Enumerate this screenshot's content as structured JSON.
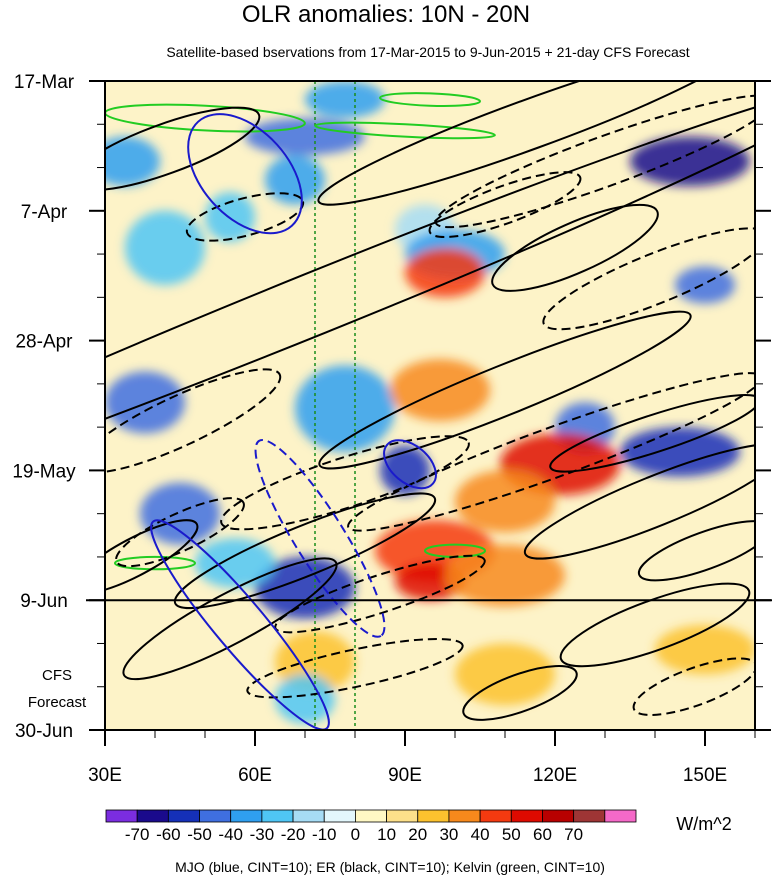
{
  "chart_data": {
    "type": "heatmap",
    "title": "OLR anomalies: 10N - 20N",
    "subtitle": "Satellite-based bservations from 17-Mar-2015 to 9-Jun-2015 + 21-day CFS Forecast",
    "x_axis": {
      "range": [
        30,
        160
      ],
      "ticks": [
        {
          "value": 30,
          "label": "30E"
        },
        {
          "value": 60,
          "label": "60E"
        },
        {
          "value": 90,
          "label": "90E"
        },
        {
          "value": 120,
          "label": "120E"
        },
        {
          "value": 150,
          "label": "150E"
        }
      ]
    },
    "y_axis": {
      "range_days": [
        0,
        105
      ],
      "direction": "top-to-bottom",
      "ticks": [
        {
          "day": 0,
          "label": "17-Mar"
        },
        {
          "day": 21,
          "label": "7-Apr"
        },
        {
          "day": 42,
          "label": "28-Apr"
        },
        {
          "day": 63,
          "label": "19-May"
        },
        {
          "day": 84,
          "label": "9-Jun"
        },
        {
          "day": 105,
          "label": "30-Jun"
        }
      ],
      "forecast_start_day": 84,
      "forecast_label_line1": "CFS",
      "forecast_label_line2": "Forecast"
    },
    "reference_lines_lon": [
      72,
      80
    ],
    "colorbar": {
      "levels": [
        "-70",
        "-60",
        "-50",
        "-40",
        "-30",
        "-20",
        "-10",
        "0",
        "10",
        "20",
        "30",
        "40",
        "50",
        "60",
        "70"
      ],
      "colors": [
        "#7b2de0",
        "#1a0a8c",
        "#1530b8",
        "#3f6fe0",
        "#2f9ff0",
        "#4fc6f5",
        "#a6dcf5",
        "#e3f7fc",
        "#fff8c4",
        "#fde08a",
        "#fcc22e",
        "#f7891c",
        "#f53a10",
        "#de0a00",
        "#b80000",
        "#9e3535",
        "#f569c8"
      ],
      "units": "W/m^2"
    },
    "footnote": "MJO (blue, CINT=10); ER (black, CINT=10); Kelvin (green, CINT=10)",
    "anomaly_features": [
      {
        "lon": 78,
        "day": 3,
        "dlon": 8,
        "dday": 3,
        "value": -35
      },
      {
        "lon": 70,
        "day": 9,
        "dlon": 12,
        "dday": 3,
        "value": -45
      },
      {
        "lon": 34,
        "day": 13,
        "dlon": 7,
        "dday": 4,
        "value": -40
      },
      {
        "lon": 147,
        "day": 13,
        "dlon": 12,
        "dday": 4,
        "value": -70
      },
      {
        "lon": 68,
        "day": 16,
        "dlon": 6,
        "dday": 4,
        "value": -35
      },
      {
        "lon": 55,
        "day": 22,
        "dlon": 5,
        "dday": 4,
        "value": -30
      },
      {
        "lon": 94,
        "day": 24,
        "dlon": 6,
        "dday": 4,
        "value": -20
      },
      {
        "lon": 100,
        "day": 28,
        "dlon": 10,
        "dday": 4,
        "value": -40
      },
      {
        "lon": 42,
        "day": 27,
        "dlon": 8,
        "dday": 6,
        "value": -25
      },
      {
        "lon": 98,
        "day": 31,
        "dlon": 8,
        "dday": 4,
        "value": 40
      },
      {
        "lon": 150,
        "day": 33,
        "dlon": 6,
        "dday": 3,
        "value": -50
      },
      {
        "lon": 38,
        "day": 52,
        "dlon": 8,
        "dday": 5,
        "value": -50
      },
      {
        "lon": 78,
        "day": 53,
        "dlon": 10,
        "dday": 7,
        "value": -40
      },
      {
        "lon": 97,
        "day": 50,
        "dlon": 10,
        "dday": 5,
        "value": 30
      },
      {
        "lon": 90,
        "day": 63,
        "dlon": 5,
        "dday": 4,
        "value": -55
      },
      {
        "lon": 126,
        "day": 56,
        "dlon": 6,
        "dday": 4,
        "value": -45
      },
      {
        "lon": 121,
        "day": 62,
        "dlon": 12,
        "dday": 5,
        "value": 50
      },
      {
        "lon": 145,
        "day": 60,
        "dlon": 12,
        "dday": 4,
        "value": -60
      },
      {
        "lon": 110,
        "day": 68,
        "dlon": 10,
        "dday": 5,
        "value": 30
      },
      {
        "lon": 45,
        "day": 70,
        "dlon": 8,
        "dday": 5,
        "value": -45
      },
      {
        "lon": 96,
        "day": 76,
        "dlon": 12,
        "dday": 5,
        "value": 40
      },
      {
        "lon": 70,
        "day": 82,
        "dlon": 10,
        "dday": 5,
        "value": -60
      },
      {
        "lon": 95,
        "day": 81,
        "dlon": 7,
        "dday": 3,
        "value": 50
      },
      {
        "lon": 110,
        "day": 80,
        "dlon": 12,
        "dday": 5,
        "value": 30
      },
      {
        "lon": 56,
        "day": 78,
        "dlon": 8,
        "dday": 4,
        "value": -30
      },
      {
        "lon": 72,
        "day": 94,
        "dlon": 8,
        "dday": 5,
        "value": 25
      },
      {
        "lon": 70,
        "day": 100,
        "dlon": 6,
        "dday": 4,
        "value": -30
      },
      {
        "lon": 110,
        "day": 96,
        "dlon": 10,
        "dday": 5,
        "value": 20
      },
      {
        "lon": 150,
        "day": 92,
        "dlon": 10,
        "dday": 4,
        "value": 20
      }
    ],
    "mjo_contours": [
      {
        "lon": 58,
        "day": 15,
        "rlon": 14,
        "rday": 7,
        "angle_deg": 48,
        "style": "solid"
      },
      {
        "lon": 91,
        "day": 62,
        "rlon": 6,
        "rday": 3,
        "angle_deg": 40,
        "style": "solid"
      },
      {
        "lon": 73,
        "day": 74,
        "rlon": 23,
        "rday": 4,
        "angle_deg": 58,
        "style": "dashed"
      },
      {
        "lon": 57,
        "day": 88,
        "rlon": 27,
        "rday": 4,
        "angle_deg": 50,
        "style": "solid"
      }
    ],
    "er_contours": [
      {
        "lon": 72,
        "day": 36,
        "rlon": 115,
        "rday": 5,
        "angle_deg": -22,
        "style": "solid"
      },
      {
        "lon": 42,
        "day": 11,
        "rlon": 20,
        "rday": 4,
        "angle_deg": -20,
        "style": "solid"
      },
      {
        "lon": 115,
        "day": 7,
        "rlon": 45,
        "rday": 4,
        "angle_deg": -20,
        "style": "solid"
      },
      {
        "lon": 130,
        "day": 13,
        "rlon": 36,
        "rday": 4,
        "angle_deg": -20,
        "style": "dashed"
      },
      {
        "lon": 110,
        "day": 20,
        "rlon": 16,
        "rday": 3,
        "angle_deg": -20,
        "style": "dashed"
      },
      {
        "lon": 58,
        "day": 22,
        "rlon": 12,
        "rday": 3,
        "angle_deg": -15,
        "style": "dashed"
      },
      {
        "lon": 140,
        "day": 32,
        "rlon": 24,
        "rday": 4,
        "angle_deg": -22,
        "style": "dashed"
      },
      {
        "lon": 124,
        "day": 27,
        "rlon": 18,
        "rday": 4,
        "angle_deg": -24,
        "style": "solid"
      },
      {
        "lon": 110,
        "day": 50,
        "rlon": 40,
        "rday": 4,
        "angle_deg": -22,
        "style": "solid"
      },
      {
        "lon": 120,
        "day": 60,
        "rlon": 44,
        "rday": 4,
        "angle_deg": -20,
        "style": "dashed"
      },
      {
        "lon": 140,
        "day": 57,
        "rlon": 22,
        "rday": 3,
        "angle_deg": -18,
        "style": "solid"
      },
      {
        "lon": 140,
        "day": 68,
        "rlon": 28,
        "rday": 4,
        "angle_deg": -22,
        "style": "solid"
      },
      {
        "lon": 45,
        "day": 55,
        "rlon": 22,
        "rday": 4,
        "angle_deg": -25,
        "style": "dashed"
      },
      {
        "lon": 45,
        "day": 73,
        "rlon": 14,
        "rday": 3,
        "angle_deg": -25,
        "style": "dashed"
      },
      {
        "lon": 36,
        "day": 77,
        "rlon": 14,
        "rday": 3,
        "angle_deg": -28,
        "style": "solid"
      },
      {
        "lon": 78,
        "day": 65,
        "rlon": 26,
        "rday": 4,
        "angle_deg": -18,
        "style": "dashed"
      },
      {
        "lon": 70,
        "day": 76,
        "rlon": 28,
        "rday": 4,
        "angle_deg": -22,
        "style": "solid"
      },
      {
        "lon": 55,
        "day": 87,
        "rlon": 24,
        "rday": 4,
        "angle_deg": -28,
        "style": "solid"
      },
      {
        "lon": 85,
        "day": 83,
        "rlon": 22,
        "rday": 3,
        "angle_deg": -18,
        "style": "dashed"
      },
      {
        "lon": 140,
        "day": 88,
        "rlon": 20,
        "rday": 4,
        "angle_deg": -20,
        "style": "solid"
      },
      {
        "lon": 150,
        "day": 76,
        "rlon": 14,
        "rday": 3,
        "angle_deg": -20,
        "style": "solid"
      },
      {
        "lon": 80,
        "day": 95,
        "rlon": 22,
        "rday": 3,
        "angle_deg": -12,
        "style": "dashed"
      },
      {
        "lon": 113,
        "day": 99,
        "rlon": 12,
        "rday": 3,
        "angle_deg": -20,
        "style": "solid"
      },
      {
        "lon": 148,
        "day": 98,
        "rlon": 13,
        "rday": 3,
        "angle_deg": -20,
        "style": "dashed"
      }
    ],
    "kelvin_contours": [
      {
        "lon": 50,
        "day": 6,
        "rlon": 20,
        "rday": 2,
        "angle_deg": 3,
        "style": "solid"
      },
      {
        "lon": 90,
        "day": 8,
        "rlon": 18,
        "rday": 1,
        "angle_deg": 3,
        "style": "solid"
      },
      {
        "lon": 95,
        "day": 3,
        "rlon": 10,
        "rday": 1,
        "angle_deg": 2,
        "style": "solid"
      },
      {
        "lon": 40,
        "day": 78,
        "rlon": 8,
        "rday": 1,
        "angle_deg": 0,
        "style": "solid"
      },
      {
        "lon": 100,
        "day": 76,
        "rlon": 6,
        "rday": 1,
        "angle_deg": 0,
        "style": "solid"
      }
    ]
  }
}
